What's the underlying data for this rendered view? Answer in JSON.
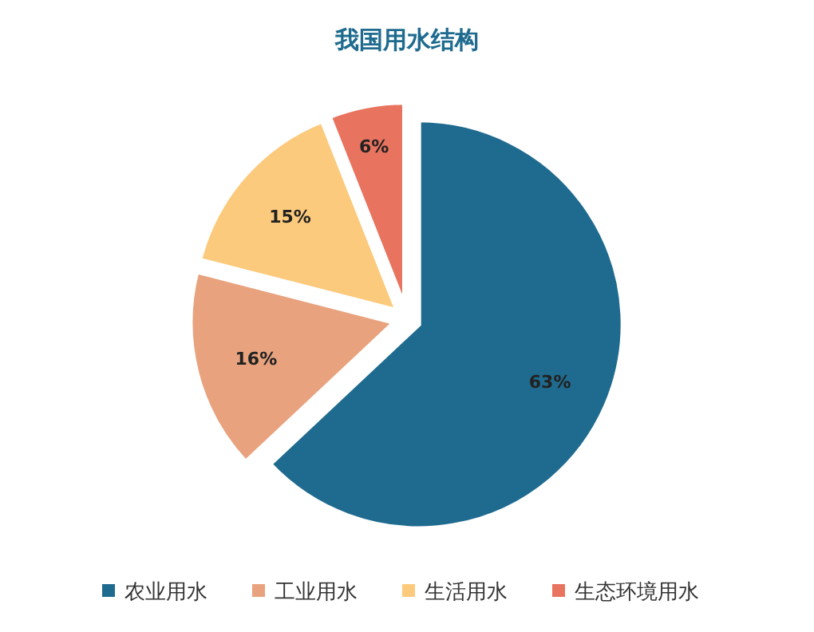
{
  "chart_data": {
    "type": "pie",
    "title": "我国用水结构",
    "categories": [
      "农业用水",
      "工业用水",
      "生活用水",
      "生态环境用水"
    ],
    "values": [
      63,
      16,
      15,
      6
    ],
    "value_labels": [
      "63%",
      "16%",
      "15%",
      "6%"
    ],
    "colors": [
      "#1f6b8f",
      "#e9a27e",
      "#fcca7c",
      "#e8735f"
    ],
    "legend": "bottom"
  }
}
